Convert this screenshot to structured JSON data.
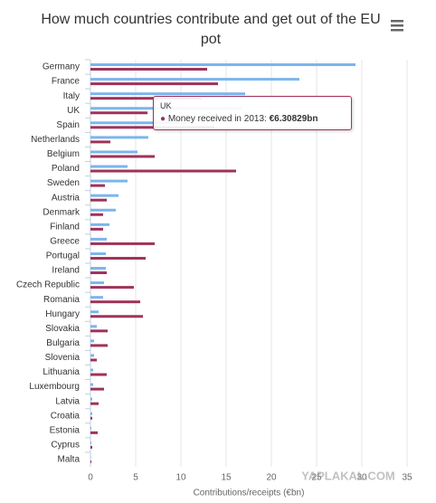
{
  "chart_data": {
    "type": "hbar",
    "title": "How much countries contribute and get out of the EU pot",
    "x_title": "Contributions/receipts (€bn)",
    "watermark": "YAPLAKAL.COM",
    "categories": [
      "Germany",
      "France",
      "Italy",
      "UK",
      "Spain",
      "Netherlands",
      "Belgium",
      "Poland",
      "Sweden",
      "Austria",
      "Denmark",
      "Finland",
      "Greece",
      "Portugal",
      "Ireland",
      "Czech Republic",
      "Romania",
      "Hungary",
      "Slovakia",
      "Bulgaria",
      "Slovenia",
      "Lithuania",
      "Luxembourg",
      "Latvia",
      "Croatia",
      "Estonia",
      "Cyprus",
      "Malta"
    ],
    "series": [
      {
        "color": "#7cb5ec",
        "values": [
          29.3,
          23.1,
          17.1,
          16.8,
          10.7,
          6.4,
          5.2,
          4.1,
          4.1,
          3.1,
          2.8,
          2.1,
          1.8,
          1.7,
          1.7,
          1.5,
          1.4,
          0.9,
          0.7,
          0.4,
          0.4,
          0.3,
          0.3,
          0.2,
          0.2,
          0.1,
          0.1,
          0.05
        ]
      },
      {
        "name": "Money received in 2013",
        "color": "#a0325a",
        "values": [
          12.9,
          14.1,
          12.3,
          6.30829,
          13.7,
          2.2,
          7.1,
          16.1,
          1.6,
          1.8,
          1.4,
          1.4,
          7.1,
          6.1,
          1.8,
          4.8,
          5.5,
          5.8,
          1.9,
          1.9,
          0.7,
          1.8,
          1.5,
          0.9,
          0.2,
          0.8,
          0.2,
          0.1
        ],
        "value_labels": [
          null,
          null,
          null,
          "€6.30829bn",
          null,
          null,
          null,
          null,
          null,
          null,
          null,
          null,
          null,
          null,
          null,
          null,
          null,
          null,
          null,
          null,
          null,
          null,
          null,
          null,
          null,
          null,
          null,
          null
        ]
      }
    ],
    "xlim": [
      0,
      35
    ],
    "xticks": [
      0,
      5,
      10,
      15,
      20,
      25,
      30,
      35
    ],
    "grid": true
  }
}
